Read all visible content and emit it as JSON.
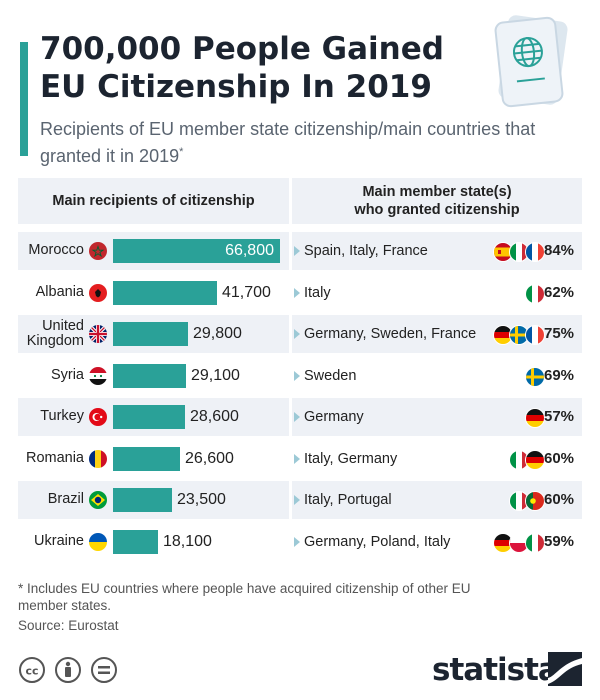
{
  "header": {
    "title": "700,000 People Gained EU Citizenship In 2019",
    "subtitle": "Recipients of EU member state citizenship/main countries that granted it in 2019",
    "subtitle_mark": "*"
  },
  "columns": {
    "left": "Main recipients of citizenship",
    "right_line1": "Main member state(s)",
    "right_line2": "who granted citizenship"
  },
  "colors": {
    "accent": "#2aa198",
    "row_alt": "#eef1f6",
    "text": "#222222"
  },
  "chart_data": {
    "type": "bar",
    "orientation": "horizontal",
    "title": "700,000 People Gained EU Citizenship In 2019",
    "categories": [
      "Morocco",
      "Albania",
      "United Kingdom",
      "Syria",
      "Turkey",
      "Romania",
      "Brazil",
      "Ukraine"
    ],
    "values": [
      66800,
      41700,
      29800,
      29100,
      28600,
      26600,
      23500,
      18100
    ],
    "value_labels": [
      "66,800",
      "41,700",
      "29,800",
      "29,100",
      "28,600",
      "26,600",
      "23,500",
      "18,100"
    ],
    "granting_states": [
      "Spain, Italy, France",
      "Italy",
      "Germany, Sweden, France",
      "Sweden",
      "Germany",
      "Italy, Germany",
      "Italy, Portugal",
      "Germany, Poland, Italy"
    ],
    "granting_share": [
      "84%",
      "62%",
      "75%",
      "69%",
      "57%",
      "60%",
      "60%",
      "59%"
    ],
    "xlim": [
      0,
      66800
    ]
  },
  "rows": [
    {
      "label1": "Morocco",
      "label2": "",
      "flag": "morocco-flag",
      "granting_flags": [
        "spain",
        "italy",
        "france"
      ]
    },
    {
      "label1": "Albania",
      "label2": "",
      "flag": "albania-flag",
      "granting_flags": [
        "italy"
      ]
    },
    {
      "label1": "United",
      "label2": "Kingdom",
      "flag": "uk-flag",
      "granting_flags": [
        "germany",
        "sweden",
        "france"
      ]
    },
    {
      "label1": "Syria",
      "label2": "",
      "flag": "syria-flag",
      "granting_flags": [
        "sweden"
      ]
    },
    {
      "label1": "Turkey",
      "label2": "",
      "flag": "turkey-flag",
      "granting_flags": [
        "germany"
      ]
    },
    {
      "label1": "Romania",
      "label2": "",
      "flag": "romania-flag",
      "granting_flags": [
        "italy",
        "germany"
      ]
    },
    {
      "label1": "Brazil",
      "label2": "",
      "flag": "brazil-flag",
      "granting_flags": [
        "italy",
        "portugal"
      ]
    },
    {
      "label1": "Ukraine",
      "label2": "",
      "flag": "ukraine-flag",
      "granting_flags": [
        "germany",
        "poland",
        "italy"
      ]
    }
  ],
  "footer": {
    "footnote": "* Includes EU countries where people have acquired citizenship of other EU member states.",
    "source": "Source: Eurostat",
    "brand": "statista",
    "icons": [
      "cc-icon",
      "attribution-icon",
      "no-derivatives-icon"
    ]
  }
}
